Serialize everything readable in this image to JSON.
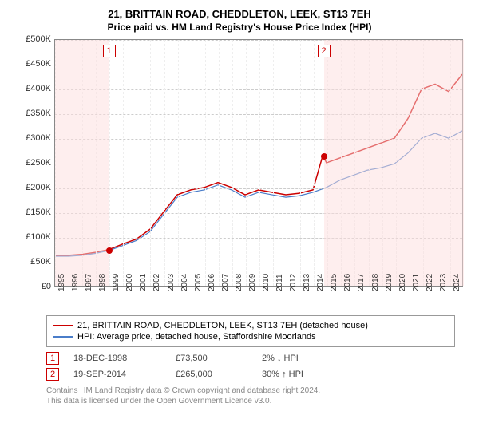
{
  "title_line1": "21, BRITTAIN ROAD, CHEDDLETON, LEEK, ST13 7EH",
  "title_line2": "Price paid vs. HM Land Registry's House Price Index (HPI)",
  "chart": {
    "type": "line",
    "ylim": [
      0,
      500000
    ],
    "ytick_step": 50000,
    "yticks": [
      "£0",
      "£50K",
      "£100K",
      "£150K",
      "£200K",
      "£250K",
      "£300K",
      "£350K",
      "£400K",
      "£450K",
      "£500K"
    ],
    "x_start": 1995,
    "x_end": 2025,
    "xticks": [
      "1995",
      "1996",
      "1997",
      "1998",
      "1999",
      "2000",
      "2001",
      "2002",
      "2003",
      "2004",
      "2005",
      "2006",
      "2007",
      "2008",
      "2009",
      "2010",
      "2011",
      "2012",
      "2013",
      "2014",
      "2015",
      "2016",
      "2017",
      "2018",
      "2019",
      "2020",
      "2021",
      "2022",
      "2023",
      "2024"
    ],
    "background_color": "#ffffff",
    "grid_color": "#cccccc",
    "shade_color": "#fddede",
    "series": [
      {
        "name": "property",
        "color": "#cc0000",
        "width": 1.5,
        "points": [
          [
            1995,
            62000
          ],
          [
            1996,
            62000
          ],
          [
            1997,
            64000
          ],
          [
            1998,
            68000
          ],
          [
            1998.96,
            73500
          ],
          [
            2000,
            85000
          ],
          [
            2001,
            95000
          ],
          [
            2002,
            115000
          ],
          [
            2003,
            150000
          ],
          [
            2004,
            185000
          ],
          [
            2005,
            195000
          ],
          [
            2006,
            200000
          ],
          [
            2007,
            210000
          ],
          [
            2008,
            200000
          ],
          [
            2009,
            185000
          ],
          [
            2010,
            195000
          ],
          [
            2011,
            190000
          ],
          [
            2012,
            185000
          ],
          [
            2013,
            188000
          ],
          [
            2014,
            195000
          ],
          [
            2014.72,
            265000
          ],
          [
            2015,
            250000
          ],
          [
            2016,
            260000
          ],
          [
            2017,
            270000
          ],
          [
            2018,
            280000
          ],
          [
            2019,
            290000
          ],
          [
            2020,
            300000
          ],
          [
            2021,
            340000
          ],
          [
            2022,
            400000
          ],
          [
            2023,
            410000
          ],
          [
            2024,
            395000
          ],
          [
            2025,
            430000
          ]
        ]
      },
      {
        "name": "hpi",
        "color": "#4a7dc9",
        "width": 1.2,
        "points": [
          [
            1995,
            60000
          ],
          [
            1996,
            60000
          ],
          [
            1997,
            62000
          ],
          [
            1998,
            66000
          ],
          [
            1999,
            72000
          ],
          [
            2000,
            82000
          ],
          [
            2001,
            92000
          ],
          [
            2002,
            110000
          ],
          [
            2003,
            145000
          ],
          [
            2004,
            180000
          ],
          [
            2005,
            190000
          ],
          [
            2006,
            195000
          ],
          [
            2007,
            205000
          ],
          [
            2008,
            195000
          ],
          [
            2009,
            180000
          ],
          [
            2010,
            190000
          ],
          [
            2011,
            185000
          ],
          [
            2012,
            180000
          ],
          [
            2013,
            183000
          ],
          [
            2014,
            190000
          ],
          [
            2015,
            200000
          ],
          [
            2016,
            215000
          ],
          [
            2017,
            225000
          ],
          [
            2018,
            235000
          ],
          [
            2019,
            240000
          ],
          [
            2020,
            248000
          ],
          [
            2021,
            270000
          ],
          [
            2022,
            300000
          ],
          [
            2023,
            310000
          ],
          [
            2024,
            300000
          ],
          [
            2025,
            315000
          ]
        ]
      }
    ],
    "shaded_ranges": [
      {
        "from": 1995,
        "to": 1998.96
      },
      {
        "from": 2014.72,
        "to": 2025
      }
    ],
    "markers": [
      {
        "n": "1",
        "x": 1998.96,
        "y": 73500
      },
      {
        "n": "2",
        "x": 2014.72,
        "y": 265000
      }
    ]
  },
  "legend": {
    "line1": {
      "color": "#cc0000",
      "label": "21, BRITTAIN ROAD, CHEDDLETON, LEEK, ST13 7EH (detached house)"
    },
    "line2": {
      "color": "#4a7dc9",
      "label": "HPI: Average price, detached house, Staffordshire Moorlands"
    }
  },
  "transactions": [
    {
      "n": "1",
      "date": "18-DEC-1998",
      "price": "£73,500",
      "pct": "2%",
      "dir": "↓",
      "suffix": "HPI"
    },
    {
      "n": "2",
      "date": "19-SEP-2014",
      "price": "£265,000",
      "pct": "30%",
      "dir": "↑",
      "suffix": "HPI"
    }
  ],
  "footer": {
    "line1": "Contains HM Land Registry data © Crown copyright and database right 2024.",
    "line2": "This data is licensed under the Open Government Licence v3.0."
  }
}
